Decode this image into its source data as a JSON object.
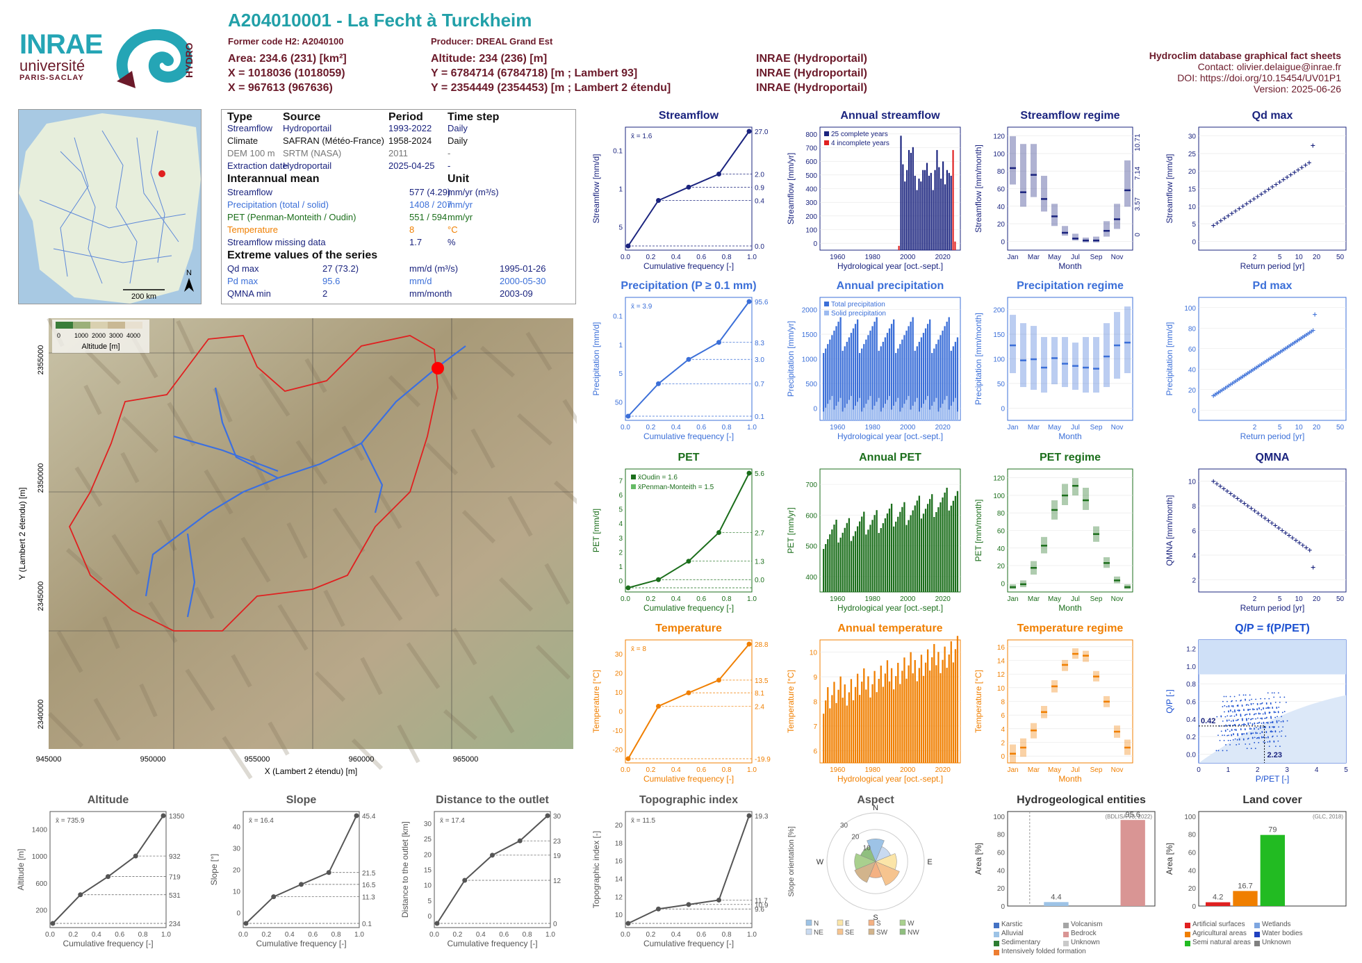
{
  "header": {
    "title": "A204010001 - La Fecht à Turckheim",
    "former_code": "Former code H2: A2040100",
    "producer": "Producer: DREAL Grand Est",
    "area": "Area: 234.6 (231) [km²]",
    "x": "X = 1018036 (1018059)",
    "x2": "X = 967613 (967636)",
    "altitude": "Altitude: 234 (236) [m]",
    "y": "Y = 6784714 (6784718) [m ; Lambert 93]",
    "y2": "Y = 2354449 (2354453) [m ; Lambert 2 étendu]",
    "src1": "INRAE (Hydroportail)",
    "src2": "INRAE (Hydroportail)",
    "src3": "INRAE (Hydroportail)",
    "db_title": "Hydroclim database graphical fact sheets",
    "contact": "Contact: olivier.delaigue@inrae.fr",
    "doi": "DOI: https://doi.org/10.15454/UV01P1",
    "version": "Version: 2025-06-26",
    "logo_inrae": "INRAE",
    "logo_univ": "université",
    "logo_ps": "PARIS-SACLAY",
    "logo_hydro": "HYDRO"
  },
  "minimap": {
    "scale": "200 km",
    "north": "N"
  },
  "info": {
    "h_type": "Type",
    "h_source": "Source",
    "h_period": "Period",
    "h_timestep": "Time step",
    "rows": [
      {
        "type": "Streamflow",
        "source": "Hydroportail",
        "period": "1993-2022",
        "step": "Daily",
        "color": "#1a237e"
      },
      {
        "type": "Climate",
        "source": "SAFRAN (Météo-France)",
        "period": "1958-2024",
        "step": "Daily",
        "color": "#111111"
      },
      {
        "type": "DEM 100 m",
        "source": "SRTM (NASA)",
        "period": "2011",
        "step": "-",
        "color": "#777777"
      },
      {
        "type": "Extraction date",
        "source": "Hydroportail",
        "period": "2025-04-25",
        "step": "-",
        "color": "#1a237e"
      }
    ],
    "h_mean": "Interannual mean",
    "h_unit": "Unit",
    "mean_rows": [
      {
        "name": "Streamflow",
        "value": "577 (4.29)",
        "unit": "mm/yr (m³/s)",
        "color": "#1a237e"
      },
      {
        "name": "Precipitation (total / solid)",
        "value": "1408 / 207",
        "unit": "mm/yr",
        "color": "#3b6fd8"
      },
      {
        "name": "PET (Penman-Monteith / Oudin)",
        "value": "551 / 594",
        "unit": "mm/yr",
        "color": "#1b6e1b"
      },
      {
        "name": "Temperature",
        "value": "8",
        "unit": "°C",
        "color": "#f07f00"
      },
      {
        "name": "Streamflow missing data",
        "value": "1.7",
        "unit": "%",
        "color": "#1a237e"
      }
    ],
    "h_extreme": "Extreme values of the series",
    "ext_rows": [
      {
        "name": "Qd max",
        "value": "27 (73.2)",
        "unit": "mm/d (m³/s)",
        "date": "1995-01-26",
        "color": "#1a237e"
      },
      {
        "name": "Pd max",
        "value": "95.6",
        "unit": "mm/d",
        "date": "2000-05-30",
        "color": "#3b6fd8"
      },
      {
        "name": "QMNA min",
        "value": "2",
        "unit": "mm/month",
        "date": "2003-09",
        "color": "#1a237e"
      }
    ]
  },
  "basin_map": {
    "legend_ticks": [
      "0",
      "1000",
      "2000",
      "3000",
      "4000"
    ],
    "legend_label": "Altitude [m]",
    "xlabel": "X (Lambert 2 étendu) [m]",
    "ylabel": "Y (Lambert 2 étendu) [m]",
    "xticks": [
      "945000",
      "950000",
      "955000",
      "960000",
      "965000"
    ],
    "yticks": [
      "2355000",
      "2350000",
      "2345000",
      "2340000"
    ]
  },
  "chart_data": [
    {
      "id": "streamflow_cdf",
      "type": "line",
      "title": "Streamflow",
      "xlabel": "Cumulative frequency [-]",
      "ylabel": "Streamflow [mm/d]",
      "color": "#1a237e",
      "log": true,
      "x": [
        0,
        0.25,
        0.5,
        0.75,
        1
      ],
      "y": [
        0.025,
        0.4,
        0.9,
        2.0,
        27.0
      ],
      "right_ticks": [
        "27.0",
        "2.0",
        "0.9",
        "0.4",
        "0.0"
      ],
      "left_ticks": [
        "5",
        "1",
        "0.1"
      ],
      "mean": "x̄ = 1.6"
    },
    {
      "id": "annual_streamflow",
      "type": "bar",
      "title": "Annual streamflow",
      "xlabel": "Hydrological year [oct.-sept.]",
      "ylabel": "Streamflow [mm/yr]",
      "color": "#1a237e",
      "legend": [
        "25 complete years",
        "4 incomplete years"
      ],
      "xticks": [
        "1960",
        "1980",
        "2000",
        "2020"
      ],
      "yticks": [
        "0",
        "100",
        "200",
        "300",
        "400",
        "500",
        "600",
        "700",
        "800"
      ],
      "ylim": [
        0,
        860
      ],
      "years": [
        1994,
        1995,
        1996,
        1997,
        1998,
        1999,
        2000,
        2001,
        2002,
        2003,
        2004,
        2005,
        2006,
        2007,
        2008,
        2009,
        2010,
        2011,
        2012,
        2013,
        2014,
        2015,
        2016,
        2017,
        2018,
        2019,
        2020,
        2021,
        2022
      ],
      "values": [
        30,
        800,
        600,
        480,
        560,
        700,
        680,
        720,
        520,
        420,
        500,
        480,
        560,
        560,
        610,
        520,
        540,
        420,
        560,
        700,
        580,
        500,
        620,
        460,
        560,
        540,
        520,
        700,
        60
      ]
    },
    {
      "id": "streamflow_regime",
      "type": "boxplot",
      "title": "Streamflow regime",
      "xlabel": "Month",
      "ylabel": "Streamflow [mm/month]",
      "color": "#1a237e",
      "months": [
        "Jan",
        "Feb",
        "Mar",
        "Apr",
        "May",
        "Jun",
        "Jul",
        "Aug",
        "Sep",
        "Oct",
        "Nov",
        "Dec"
      ],
      "median": [
        85,
        60,
        78,
        53,
        35,
        18,
        12,
        10,
        10,
        20,
        32,
        62
      ],
      "q_low": [
        68,
        45,
        55,
        40,
        25,
        15,
        10,
        8,
        8,
        14,
        22,
        45
      ],
      "q_high": [
        118,
        110,
        110,
        77,
        48,
        25,
        17,
        13,
        14,
        30,
        48,
        93
      ],
      "yticks": [
        "0",
        "20",
        "40",
        "60",
        "80",
        "100",
        "120"
      ],
      "right_ticks": [
        "10.71",
        "7.14",
        "3.57",
        "0"
      ]
    },
    {
      "id": "qd_max",
      "type": "scatter",
      "title": "Qd max",
      "xlabel": "Return period [yr]",
      "ylabel": "Streamflow [mm/d]",
      "color": "#1a237e",
      "xticks": [
        "2",
        "5",
        "10",
        "20",
        "50"
      ],
      "yticks": [
        "0",
        "5",
        "10",
        "15",
        "20",
        "25",
        "30"
      ],
      "ylim": [
        0,
        30
      ]
    },
    {
      "id": "precip_cdf",
      "type": "line",
      "title": "Precipitation (P ≥ 0.1 mm)",
      "xlabel": "Cumulative frequency [-]",
      "ylabel": "Precipitation [mm/d]",
      "color": "#3b6fd8",
      "log": true,
      "x": [
        0,
        0.25,
        0.5,
        0.75,
        1
      ],
      "y": [
        0.1,
        0.7,
        3.0,
        8.3,
        95.6
      ],
      "right_ticks": [
        "95.6",
        "8.3",
        "3.0",
        "0.7",
        "0.1"
      ],
      "left_ticks": [
        "50",
        "5",
        "1",
        "0.1"
      ],
      "mean": "x̄ = 3.9"
    },
    {
      "id": "annual_precip",
      "type": "bar",
      "title": "Annual precipitation",
      "xlabel": "Hydrological year [oct.-sept.]",
      "ylabel": "Precipitation [mm/yr]",
      "color": "#3b6fd8",
      "legend": [
        "Total precipitation",
        "Solid precipitation"
      ],
      "xticks": [
        "1960",
        "1980",
        "2000",
        "2020"
      ],
      "yticks": [
        "0",
        "500",
        "1000",
        "1500",
        "2000"
      ],
      "ylim": [
        0,
        2100
      ]
    },
    {
      "id": "precip_regime",
      "type": "boxplot",
      "title": "Precipitation regime",
      "xlabel": "Month",
      "ylabel": "Precipitation [mm/month]",
      "color": "#3b6fd8",
      "months": [
        "Jan",
        "Feb",
        "Mar",
        "Apr",
        "May",
        "Jun",
        "Jul",
        "Aug",
        "Sep",
        "Oct",
        "Nov",
        "Dec"
      ],
      "median": [
        135,
        108,
        110,
        95,
        112,
        102,
        98,
        95,
        93,
        115,
        135,
        140
      ],
      "q_low": [
        85,
        60,
        55,
        50,
        65,
        60,
        55,
        50,
        50,
        60,
        75,
        85
      ],
      "q_high": [
        190,
        175,
        170,
        150,
        150,
        150,
        140,
        150,
        150,
        175,
        195,
        205
      ],
      "yticks": [
        "0",
        "50",
        "100",
        "150",
        "200"
      ]
    },
    {
      "id": "pd_max",
      "type": "scatter",
      "title": "Pd max",
      "xlabel": "Return period [yr]",
      "ylabel": "Precipitation [mm/d]",
      "color": "#3b6fd8",
      "xticks": [
        "2",
        "5",
        "10",
        "20",
        "50"
      ],
      "yticks": [
        "0",
        "20",
        "40",
        "60",
        "80",
        "100"
      ],
      "ylim": [
        0,
        110
      ]
    },
    {
      "id": "pet_cdf",
      "type": "line",
      "title": "PET",
      "xlabel": "Cumulative frequency [-]",
      "ylabel": "PET [mm/d]",
      "color": "#1b6e1b",
      "x": [
        0,
        0.25,
        0.5,
        0.75,
        1
      ],
      "y": [
        0,
        0.4,
        1.3,
        2.7,
        5.6
      ],
      "right_ticks": [
        "5.6",
        "2.7",
        "1.3",
        "0.0"
      ],
      "left_ticks": [
        "0",
        "1",
        "2",
        "3",
        "4",
        "5",
        "6",
        "7"
      ],
      "legend": [
        "x̄Oudin = 1.6",
        "x̄Penman-Monteith = 1.5"
      ]
    },
    {
      "id": "annual_pet",
      "type": "bar",
      "title": "Annual PET",
      "xlabel": "Hydrological year [oct.-sept.]",
      "ylabel": "PET [mm/yr]",
      "color": "#1b6e1b",
      "xticks": [
        "1960",
        "1980",
        "2000",
        "2020"
      ],
      "yticks": [
        "400",
        "500",
        "600",
        "700"
      ],
      "ylim": [
        380,
        780
      ]
    },
    {
      "id": "pet_regime",
      "type": "boxplot",
      "title": "PET regime",
      "xlabel": "Month",
      "ylabel": "PET [mm/month]",
      "color": "#1b6e1b",
      "months": [
        "Jan",
        "Feb",
        "Mar",
        "Apr",
        "May",
        "Jun",
        "Jul",
        "Aug",
        "Sep",
        "Oct",
        "Nov",
        "Dec"
      ],
      "median": [
        5,
        8,
        25,
        48,
        85,
        100,
        110,
        95,
        60,
        30,
        12,
        5
      ],
      "q_low": [
        3,
        5,
        18,
        40,
        75,
        90,
        100,
        85,
        52,
        25,
        9,
        3
      ],
      "q_high": [
        8,
        12,
        32,
        57,
        95,
        112,
        118,
        108,
        68,
        36,
        16,
        8
      ],
      "yticks": [
        "0",
        "20",
        "40",
        "60",
        "80",
        "100",
        "120"
      ]
    },
    {
      "id": "qmna",
      "type": "scatter",
      "title": "QMNA",
      "xlabel": "Return period [yr]",
      "ylabel": "QMNA [mm/month]",
      "color": "#1a237e",
      "xticks": [
        "2",
        "5",
        "10",
        "20",
        "50"
      ],
      "yticks": [
        "2",
        "4",
        "6",
        "8",
        "10"
      ],
      "ylim": [
        1,
        12
      ]
    },
    {
      "id": "temp_cdf",
      "type": "line",
      "title": "Temperature",
      "xlabel": "Cumulative frequency [-]",
      "ylabel": "Temperature [°C]",
      "color": "#f07f00",
      "x": [
        0,
        0.25,
        0.5,
        0.75,
        1
      ],
      "y": [
        -19.9,
        2.4,
        8.1,
        13.5,
        28.8
      ],
      "right_ticks": [
        "28.8",
        "13.5",
        "8.1",
        "2.4",
        "-19.9"
      ],
      "left_ticks": [
        "-20",
        "-10",
        "0",
        "10",
        "20",
        "30"
      ],
      "mean": "x̄ = 8"
    },
    {
      "id": "annual_temp",
      "type": "bar",
      "title": "Annual temperature",
      "xlabel": "Hydrological year [oct.-sept.]",
      "ylabel": "Temperature [°C]",
      "color": "#f07f00",
      "xticks": [
        "1960",
        "1980",
        "2000",
        "2020"
      ],
      "yticks": [
        "6",
        "7",
        "8",
        "9",
        "10"
      ],
      "ylim": [
        5.5,
        10.5
      ]
    },
    {
      "id": "temp_regime",
      "type": "boxplot",
      "title": "Temperature regime",
      "xlabel": "Month",
      "ylabel": "Temperature [°C]",
      "color": "#f07f00",
      "months": [
        "Jan",
        "Feb",
        "Mar",
        "Apr",
        "May",
        "Jun",
        "Jul",
        "Aug",
        "Sep",
        "Oct",
        "Nov",
        "Dec"
      ],
      "median": [
        0,
        1,
        3.8,
        6.8,
        11,
        14.5,
        16.3,
        16,
        12.6,
        8.5,
        3.6,
        1
      ],
      "q_low": [
        -1.5,
        -0.5,
        2.5,
        5.8,
        10,
        13.5,
        15.5,
        15,
        11.8,
        7.6,
        2.6,
        -0.2
      ],
      "q_high": [
        1.5,
        2.5,
        5,
        7.8,
        12,
        15.3,
        17.2,
        16.8,
        13.5,
        9.4,
        4.6,
        2.3
      ],
      "yticks": [
        "0",
        "2",
        "4",
        "6",
        "8",
        "10",
        "12",
        "14",
        "16"
      ]
    },
    {
      "id": "qp_ppet",
      "type": "scatter",
      "title": "Q/P = f(P/PET)",
      "xlabel": "P/PET [-]",
      "ylabel": "Q/P [-]",
      "color": "#1a4fd0",
      "xticks": [
        "0",
        "1",
        "2",
        "3",
        "4",
        "5"
      ],
      "yticks": [
        "0.0",
        "0.2",
        "0.4",
        "0.6",
        "0.8",
        "1.0",
        "1.2"
      ],
      "annot_x": "2.23",
      "annot_y": "0.42"
    },
    {
      "id": "altitude_cdf",
      "type": "line",
      "title": "Altitude",
      "xlabel": "Cumulative frequency [-]",
      "ylabel": "Altitude [m]",
      "color": "#555555",
      "x": [
        0,
        0.25,
        0.5,
        0.75,
        1
      ],
      "y": [
        234,
        531,
        719,
        932,
        1350
      ],
      "right_ticks": [
        "1350",
        "932",
        "719",
        "531",
        "234"
      ],
      "left_ticks": [
        "200",
        "600",
        "1000",
        "1400"
      ],
      "mean": "x̄ = 735.9"
    },
    {
      "id": "slope_cdf",
      "type": "line",
      "title": "Slope",
      "xlabel": "Cumulative frequency [-]",
      "ylabel": "Slope [°]",
      "color": "#555555",
      "x": [
        0,
        0.25,
        0.5,
        0.75,
        1
      ],
      "y": [
        0.1,
        11.3,
        16.5,
        21.5,
        45.4
      ],
      "right_ticks": [
        "45.4",
        "21.5",
        "16.5",
        "11.3",
        "0.1"
      ],
      "left_ticks": [
        "0",
        "10",
        "20",
        "30",
        "40"
      ],
      "mean": "x̄ = 16.4"
    },
    {
      "id": "distance_cdf",
      "type": "line",
      "title": "Distance to the outlet",
      "xlabel": "Cumulative frequency [-]",
      "ylabel": "Distance to the outlet [km]",
      "color": "#555555",
      "x": [
        0,
        0.25,
        0.5,
        0.75,
        1
      ],
      "y": [
        0,
        12,
        19,
        23,
        30
      ],
      "right_ticks": [
        "30",
        "23",
        "19",
        "12",
        "0"
      ],
      "left_ticks": [
        "0",
        "5",
        "10",
        "15",
        "20",
        "25",
        "30"
      ],
      "mean": "x̄ = 17.4"
    },
    {
      "id": "topo_cdf",
      "type": "line",
      "title": "Topographic index",
      "xlabel": "Cumulative frequency [-]",
      "ylabel": "Topographic index [-]",
      "color": "#555555",
      "x": [
        0,
        0.25,
        0.5,
        0.75,
        1
      ],
      "y": [
        9.6,
        10.9,
        11.3,
        11.7,
        19.3
      ],
      "right_ticks": [
        "19.3",
        "11.7",
        "10.9",
        "9.6"
      ],
      "left_ticks": [
        "10",
        "12",
        "14",
        "16",
        "18",
        "20"
      ],
      "mean": "x̄ = 11.5"
    },
    {
      "id": "aspect",
      "type": "pie",
      "title": "Aspect",
      "ylabel": "Slope orientation [%]",
      "labels": [
        "N",
        "NE",
        "E",
        "SE",
        "S",
        "SW",
        "W",
        "NW"
      ],
      "values": [
        14,
        10,
        13,
        16,
        10,
        14,
        13,
        10
      ],
      "colors": [
        "#9dc3e6",
        "#c9daf0",
        "#fbe5a8",
        "#f6c48f",
        "#f4b183",
        "#d2b48c",
        "#a9d08e",
        "#8fbf7f"
      ],
      "rings": [
        "10",
        "20",
        "30"
      ]
    },
    {
      "id": "hydrogeology",
      "type": "bar",
      "title": "Hydrogeological entities",
      "ylabel": "Area [%]",
      "source": "(BDLISA V3, 2022)",
      "categories": [
        "Karstic",
        "Alluvial",
        "Sedimentary",
        "Intensively folded formation",
        "Volcanism",
        "Bedrock",
        "Unknown"
      ],
      "values": [
        0,
        4.4,
        0,
        0,
        0,
        95.6,
        0
      ],
      "colors": [
        "#4472c4",
        "#9dc3e6",
        "#2e7d32",
        "#ed7d31",
        "#a5a5a5",
        "#d99594",
        "#c9c9c9"
      ],
      "yticks": [
        "0",
        "20",
        "40",
        "60",
        "80",
        "100"
      ]
    },
    {
      "id": "land_cover",
      "type": "bar",
      "title": "Land cover",
      "ylabel": "Area [%]",
      "source": "(GLC, 2018)",
      "categories": [
        "Artificial surfaces",
        "Agricultural areas",
        "Semi natural areas",
        "Wetlands",
        "Water bodies",
        "Unknown"
      ],
      "values": [
        4.2,
        16.7,
        79,
        0,
        0,
        0
      ],
      "colors": [
        "#e02020",
        "#f07f00",
        "#22bb22",
        "#7ea6e0",
        "#2040c0",
        "#808080"
      ],
      "yticks": [
        "0",
        "20",
        "40",
        "60",
        "80",
        "100"
      ]
    }
  ]
}
